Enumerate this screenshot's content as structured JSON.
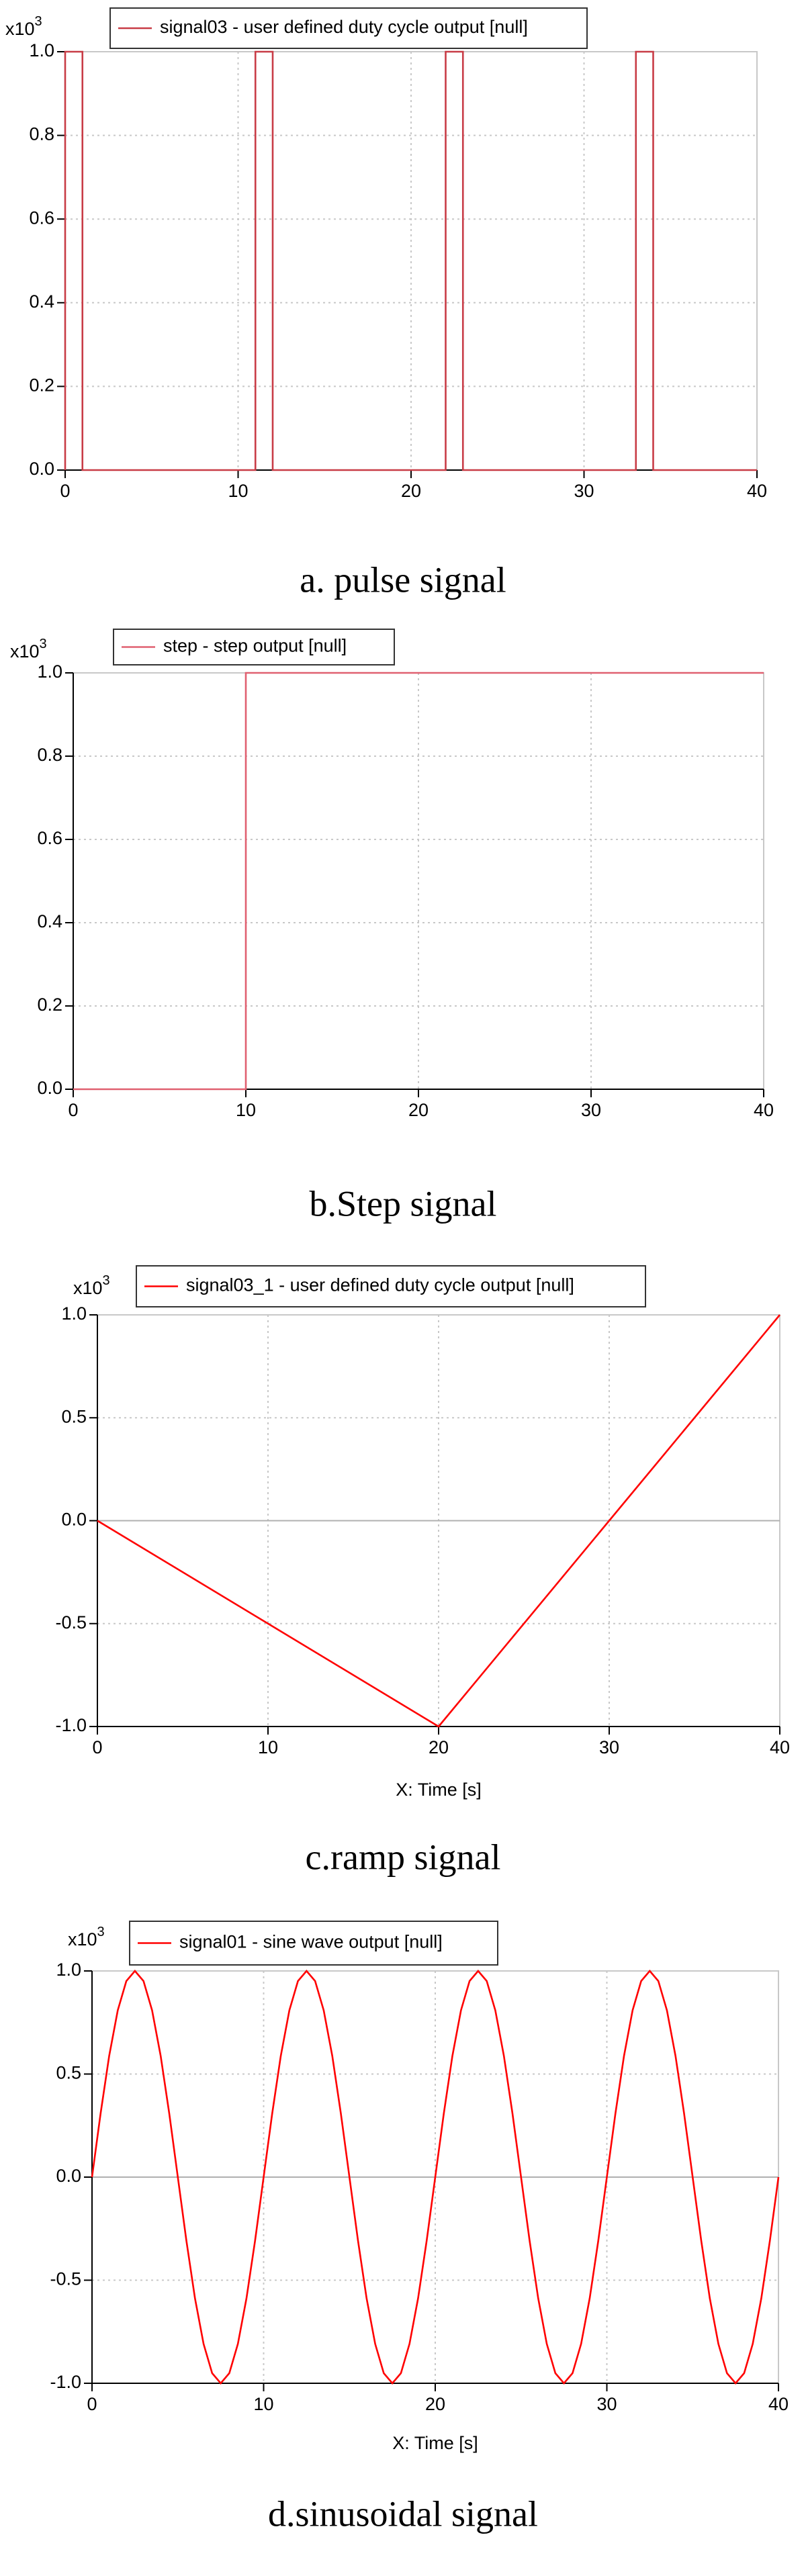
{
  "chart_data": [
    {
      "type": "line",
      "caption": "a. pulse signal",
      "y_multiplier": {
        "base": "x10",
        "exponent": "3"
      },
      "x": [
        0,
        0,
        1,
        1,
        11,
        11,
        12,
        12,
        22,
        22,
        23,
        23,
        33,
        33,
        34,
        34,
        40
      ],
      "series": [
        {
          "name": "signal03 - user defined duty cycle output [null]",
          "color": "#c83c46",
          "values": [
            0,
            1,
            1,
            0,
            0,
            1,
            1,
            0,
            0,
            1,
            1,
            0,
            0,
            1,
            1,
            0,
            0
          ]
        }
      ],
      "xlim": [
        0,
        40
      ],
      "xticks": [
        0,
        10,
        20,
        30,
        40
      ],
      "ylim": [
        0,
        1
      ],
      "yticks": [
        {
          "value": 0,
          "label": "0.0"
        },
        {
          "value": 0.2,
          "label": "0.2"
        },
        {
          "value": 0.4,
          "label": "0.4"
        },
        {
          "value": 0.6,
          "label": "0.6"
        },
        {
          "value": 0.8,
          "label": "0.8"
        },
        {
          "value": 1,
          "label": "1.0"
        }
      ],
      "grid": true
    },
    {
      "type": "line",
      "caption": "b.Step signal",
      "y_multiplier": {
        "base": "x10",
        "exponent": "3"
      },
      "x": [
        0,
        10,
        10,
        40
      ],
      "series": [
        {
          "name": "step - step output [null]",
          "color": "#e06070",
          "values": [
            0,
            0,
            1,
            1
          ]
        }
      ],
      "xlim": [
        0,
        40
      ],
      "xticks": [
        0,
        10,
        20,
        30,
        40
      ],
      "ylim": [
        0,
        1
      ],
      "yticks": [
        {
          "value": 0,
          "label": "0.0"
        },
        {
          "value": 0.2,
          "label": "0.2"
        },
        {
          "value": 0.4,
          "label": "0.4"
        },
        {
          "value": 0.6,
          "label": "0.6"
        },
        {
          "value": 0.8,
          "label": "0.8"
        },
        {
          "value": 1,
          "label": "1.0"
        }
      ],
      "grid": true
    },
    {
      "type": "line",
      "caption": "c.ramp signal",
      "xlabel": "X: Time [s]",
      "y_multiplier": {
        "base": "x10",
        "exponent": "3"
      },
      "x": [
        0,
        20,
        40
      ],
      "series": [
        {
          "name": "signal03_1 - user defined duty cycle output [null]",
          "color": "#ff0000",
          "values": [
            0,
            -1,
            1
          ]
        }
      ],
      "xlim": [
        0,
        40
      ],
      "xticks": [
        0,
        10,
        20,
        30,
        40
      ],
      "ylim": [
        -1,
        1
      ],
      "yticks": [
        {
          "value": -1,
          "label": "-1.0"
        },
        {
          "value": -0.5,
          "label": "-0.5"
        },
        {
          "value": 0,
          "label": "0.0"
        },
        {
          "value": 0.5,
          "label": "0.5"
        },
        {
          "value": 1,
          "label": "1.0"
        }
      ],
      "grid": true,
      "zero_line": true
    },
    {
      "type": "line",
      "caption": "d.sinusoidal signal",
      "xlabel": "X: Time [s]",
      "y_multiplier": {
        "base": "x10",
        "exponent": "3"
      },
      "x": [
        0,
        0.5,
        1,
        1.5,
        2,
        2.5,
        3,
        3.5,
        4,
        4.5,
        5,
        5.5,
        6,
        6.5,
        7,
        7.5,
        8,
        8.5,
        9,
        9.5,
        10,
        10.5,
        11,
        11.5,
        12,
        12.5,
        13,
        13.5,
        14,
        14.5,
        15,
        15.5,
        16,
        16.5,
        17,
        17.5,
        18,
        18.5,
        19,
        19.5,
        20,
        20.5,
        21,
        21.5,
        22,
        22.5,
        23,
        23.5,
        24,
        24.5,
        25,
        25.5,
        26,
        26.5,
        27,
        27.5,
        28,
        28.5,
        29,
        29.5,
        30,
        30.5,
        31,
        31.5,
        32,
        32.5,
        33,
        33.5,
        34,
        34.5,
        35,
        35.5,
        36,
        36.5,
        37,
        37.5,
        38,
        38.5,
        39,
        39.5,
        40
      ],
      "series": [
        {
          "name": "signal01 - sine wave output [null]",
          "color": "#ff0000",
          "values": [
            0,
            0.309,
            0.588,
            0.809,
            0.951,
            1,
            0.951,
            0.809,
            0.588,
            0.309,
            0,
            -0.309,
            -0.588,
            -0.809,
            -0.951,
            -1,
            -0.951,
            -0.809,
            -0.588,
            -0.309,
            0,
            0.309,
            0.588,
            0.809,
            0.951,
            1,
            0.951,
            0.809,
            0.588,
            0.309,
            0,
            -0.309,
            -0.588,
            -0.809,
            -0.951,
            -1,
            -0.951,
            -0.809,
            -0.588,
            -0.309,
            0,
            0.309,
            0.588,
            0.809,
            0.951,
            1,
            0.951,
            0.809,
            0.588,
            0.309,
            0,
            -0.309,
            -0.588,
            -0.809,
            -0.951,
            -1,
            -0.951,
            -0.809,
            -0.588,
            -0.309,
            0,
            0.309,
            0.588,
            0.809,
            0.951,
            1,
            0.951,
            0.809,
            0.588,
            0.309,
            0,
            -0.309,
            -0.588,
            -0.809,
            -0.951,
            -1,
            -0.951,
            -0.809,
            -0.588,
            -0.309,
            0
          ]
        }
      ],
      "xlim": [
        0,
        40
      ],
      "xticks": [
        0,
        10,
        20,
        30,
        40
      ],
      "ylim": [
        -1,
        1
      ],
      "yticks": [
        {
          "value": -1,
          "label": "-1.0"
        },
        {
          "value": -0.5,
          "label": "-0.5"
        },
        {
          "value": 0,
          "label": "0.0"
        },
        {
          "value": 0.5,
          "label": "0.5"
        },
        {
          "value": 1,
          "label": "1.0"
        }
      ],
      "grid": true,
      "zero_line": true
    }
  ]
}
